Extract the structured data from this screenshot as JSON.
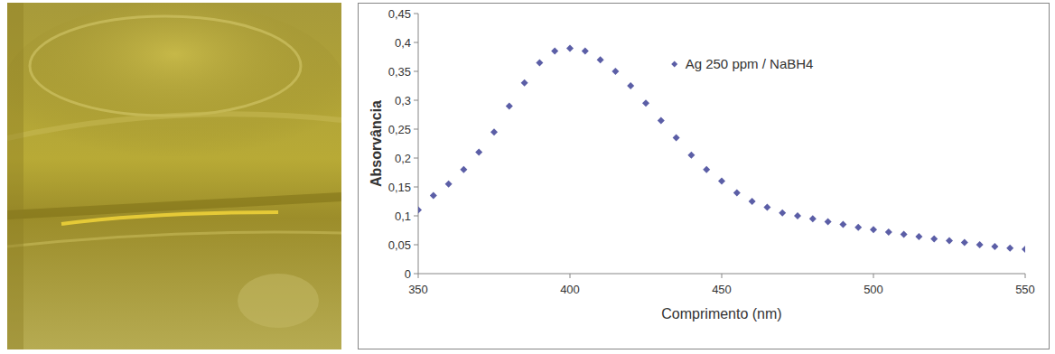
{
  "chart_data": {
    "type": "scatter",
    "x_label": "Comprimento (nm)",
    "y_label": "Absorvância",
    "xlim": [
      350,
      550
    ],
    "xticks": [
      350,
      400,
      450,
      500,
      550
    ],
    "ylim": [
      0,
      0.45
    ],
    "yticks": [
      0,
      {
        "value": 0.05,
        "label": "0,05"
      },
      {
        "value": 0.1,
        "label": "0,1"
      },
      {
        "value": 0.15,
        "label": "0,15"
      },
      {
        "value": 0.2,
        "label": "0,2"
      },
      {
        "value": 0.25,
        "label": "0,25"
      },
      {
        "value": 0.3,
        "label": "0,3"
      },
      {
        "value": 0.35,
        "label": "0,35"
      },
      {
        "value": 0.4,
        "label": "0,4"
      },
      {
        "value": 0.45,
        "label": "0,45"
      }
    ],
    "grid": false,
    "legend": "upper right",
    "x": [
      350,
      355,
      360,
      365,
      370,
      375,
      380,
      385,
      390,
      395,
      400,
      405,
      410,
      415,
      420,
      425,
      430,
      435,
      440,
      445,
      450,
      455,
      460,
      465,
      470,
      475,
      480,
      485,
      490,
      495,
      500,
      505,
      510,
      515,
      520,
      525,
      530,
      535,
      540,
      545,
      550
    ],
    "series": [
      {
        "name": "Ag 250 ppm / NaBH4",
        "color": "#5b5ea6",
        "marker": "diamond",
        "values": [
          0.11,
          0.135,
          0.155,
          0.18,
          0.21,
          0.245,
          0.29,
          0.33,
          0.365,
          0.385,
          0.39,
          0.385,
          0.37,
          0.35,
          0.325,
          0.295,
          0.265,
          0.235,
          0.205,
          0.18,
          0.16,
          0.14,
          0.125,
          0.115,
          0.105,
          0.1,
          0.095,
          0.09,
          0.085,
          0.08,
          0.076,
          0.072,
          0.068,
          0.064,
          0.06,
          0.057,
          0.054,
          0.05,
          0.047,
          0.044,
          0.042
        ]
      }
    ]
  }
}
